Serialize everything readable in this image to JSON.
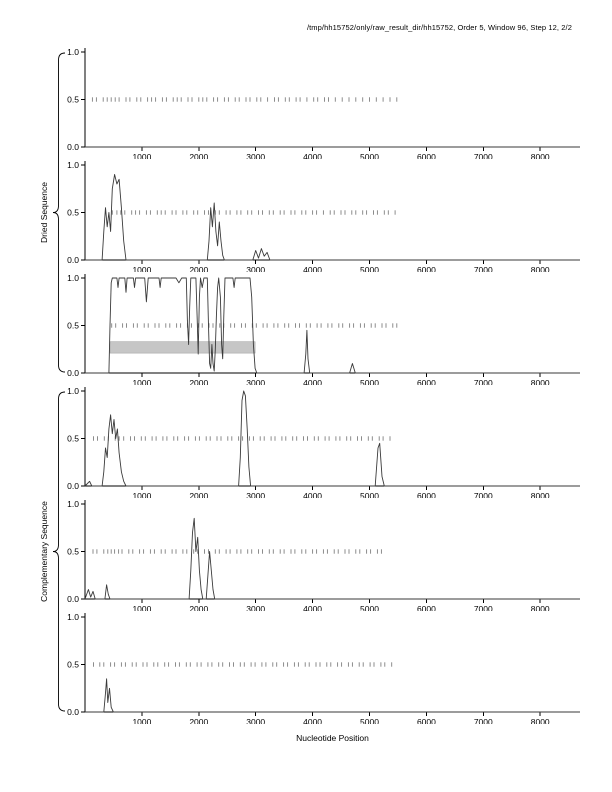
{
  "page": {
    "title": "/tmp/hh15752/only/raw_result_dir/hh15752, Order 5, Window 96, Step 12, 2/2",
    "xlabel": "Nucleotide Position",
    "group_labels": [
      "Dried Sequence",
      "Complementary Sequence"
    ]
  },
  "chart_data": {
    "type": "line",
    "layout": "6 stacked subplots, shared x axis, rug marks at y=0.5",
    "title": "/tmp/hh15752/only/raw_result_dir/hh15752, Order 5, Window 96, Step 12, 2/2",
    "xlabel": "Nucleotide Position",
    "xlim": [
      0,
      8700
    ],
    "ylim": [
      0,
      1
    ],
    "x_ticks": [
      1000,
      2000,
      3000,
      4000,
      5000,
      6000,
      7000,
      8000
    ],
    "y_ticks": [
      0,
      0.5,
      1
    ],
    "line_color": "#3a3a3a",
    "rug_color": "#808080",
    "axis_color": "#000000",
    "subplots": [
      {
        "name": "dried-1",
        "group": "Dried Sequence",
        "line": [
          [
            0,
            0
          ],
          [
            8700,
            0
          ]
        ],
        "rug_y": 0.5,
        "rug_x": [
          130,
          200,
          320,
          390,
          460,
          530,
          600,
          720,
          790,
          910,
          980,
          1100,
          1170,
          1240,
          1360,
          1430,
          1550,
          1620,
          1690,
          1810,
          1880,
          2000,
          2070,
          2140,
          2260,
          2330,
          2450,
          2520,
          2640,
          2710,
          2830,
          2900,
          3020,
          3090,
          3210,
          3330,
          3400,
          3520,
          3590,
          3710,
          3780,
          3900,
          4020,
          4090,
          4210,
          4280,
          4400,
          4520,
          4640,
          4760,
          4880,
          5000,
          5120,
          5240,
          5360,
          5480
        ]
      },
      {
        "name": "dried-2",
        "group": "Dried Sequence",
        "line": [
          [
            0,
            0
          ],
          [
            300,
            0
          ],
          [
            330,
            0.3
          ],
          [
            360,
            0.55
          ],
          [
            390,
            0.35
          ],
          [
            420,
            0.5
          ],
          [
            450,
            0.3
          ],
          [
            480,
            0.75
          ],
          [
            520,
            0.9
          ],
          [
            560,
            0.8
          ],
          [
            600,
            0.85
          ],
          [
            640,
            0.55
          ],
          [
            680,
            0.2
          ],
          [
            720,
            0
          ],
          [
            2150,
            0
          ],
          [
            2180,
            0.2
          ],
          [
            2210,
            0.55
          ],
          [
            2240,
            0.35
          ],
          [
            2270,
            0.6
          ],
          [
            2300,
            0.3
          ],
          [
            2330,
            0.15
          ],
          [
            2360,
            0.4
          ],
          [
            2390,
            0.2
          ],
          [
            2420,
            0.05
          ],
          [
            2450,
            0
          ],
          [
            2950,
            0
          ],
          [
            3000,
            0.1
          ],
          [
            3050,
            0.02
          ],
          [
            3100,
            0.12
          ],
          [
            3150,
            0.04
          ],
          [
            3200,
            0.08
          ],
          [
            3250,
            0
          ],
          [
            8700,
            0
          ]
        ],
        "rug_y": 0.5,
        "rug_x": [
          480,
          560,
          630,
          700,
          820,
          890,
          960,
          1080,
          1150,
          1270,
          1340,
          1410,
          1530,
          1600,
          1720,
          1790,
          1910,
          1980,
          2100,
          2170,
          2290,
          2360,
          2480,
          2550,
          2670,
          2740,
          2860,
          2930,
          3050,
          3120,
          3240,
          3310,
          3430,
          3500,
          3620,
          3690,
          3810,
          3880,
          4000,
          4070,
          4190,
          4310,
          4380,
          4500,
          4570,
          4690,
          4760,
          4880,
          4950,
          5070,
          5140,
          5260,
          5330,
          5450
        ]
      },
      {
        "name": "dried-3",
        "group": "Dried Sequence",
        "band": {
          "x0": 440,
          "x1": 2990,
          "y0": 0.21,
          "y1": 0.33,
          "color": "#c6c6c6"
        },
        "line": [
          [
            0,
            0
          ],
          [
            420,
            0
          ],
          [
            440,
            0.5
          ],
          [
            460,
            0.95
          ],
          [
            480,
            1
          ],
          [
            560,
            1
          ],
          [
            580,
            0.9
          ],
          [
            600,
            1
          ],
          [
            700,
            1
          ],
          [
            720,
            0.85
          ],
          [
            740,
            1
          ],
          [
            850,
            1
          ],
          [
            870,
            0.9
          ],
          [
            890,
            1
          ],
          [
            1050,
            1
          ],
          [
            1080,
            0.75
          ],
          [
            1110,
            1
          ],
          [
            1300,
            1
          ],
          [
            1320,
            0.9
          ],
          [
            1340,
            1
          ],
          [
            1600,
            1
          ],
          [
            1650,
            0.95
          ],
          [
            1700,
            1
          ],
          [
            1780,
            1
          ],
          [
            1800,
            0.55
          ],
          [
            1820,
            0.3
          ],
          [
            1840,
            0.7
          ],
          [
            1860,
            1
          ],
          [
            1950,
            1
          ],
          [
            1970,
            0.6
          ],
          [
            1990,
            0.2
          ],
          [
            2010,
            0.8
          ],
          [
            2030,
            1
          ],
          [
            2060,
            0.9
          ],
          [
            2090,
            1
          ],
          [
            2150,
            1
          ],
          [
            2170,
            0.5
          ],
          [
            2190,
            0.1
          ],
          [
            2210,
            0.05
          ],
          [
            2230,
            0.3
          ],
          [
            2250,
            0.1
          ],
          [
            2270,
            0.02
          ],
          [
            2290,
            0.25
          ],
          [
            2310,
            0.6
          ],
          [
            2330,
            0.9
          ],
          [
            2350,
            1
          ],
          [
            2380,
            0.8
          ],
          [
            2400,
            0.3
          ],
          [
            2420,
            0.15
          ],
          [
            2440,
            0.6
          ],
          [
            2460,
            1
          ],
          [
            2600,
            1
          ],
          [
            2620,
            0.9
          ],
          [
            2640,
            1
          ],
          [
            2750,
            1
          ],
          [
            2900,
            1
          ],
          [
            2930,
            0.8
          ],
          [
            2960,
            0.3
          ],
          [
            2990,
            0.05
          ],
          [
            3020,
            0
          ],
          [
            3850,
            0
          ],
          [
            3880,
            0.2
          ],
          [
            3900,
            0.45
          ],
          [
            3920,
            0.15
          ],
          [
            3950,
            0
          ],
          [
            4650,
            0
          ],
          [
            4700,
            0.1
          ],
          [
            4750,
            0
          ],
          [
            8700,
            0
          ]
        ],
        "rug_y": 0.5,
        "rug_x": [
          470,
          540,
          660,
          730,
          850,
          920,
          1040,
          1110,
          1230,
          1300,
          1420,
          1490,
          1610,
          1680,
          1800,
          1870,
          1990,
          2060,
          2180,
          2250,
          2370,
          2440,
          2560,
          2630,
          2750,
          2820,
          2940,
          3010,
          3130,
          3200,
          3320,
          3390,
          3510,
          3580,
          3700,
          3770,
          3890,
          3960,
          4080,
          4150,
          4270,
          4340,
          4460,
          4530,
          4650,
          4720,
          4840,
          4910,
          5030,
          5100,
          5220,
          5290,
          5410,
          5480
        ]
      },
      {
        "name": "complementary-1",
        "group": "Complementary Sequence",
        "line": [
          [
            0,
            0
          ],
          [
            80,
            0.05
          ],
          [
            120,
            0
          ],
          [
            300,
            0
          ],
          [
            330,
            0.15
          ],
          [
            360,
            0.4
          ],
          [
            390,
            0.3
          ],
          [
            420,
            0.6
          ],
          [
            450,
            0.75
          ],
          [
            480,
            0.55
          ],
          [
            510,
            0.7
          ],
          [
            540,
            0.5
          ],
          [
            570,
            0.6
          ],
          [
            600,
            0.35
          ],
          [
            640,
            0.15
          ],
          [
            680,
            0.05
          ],
          [
            720,
            0
          ],
          [
            2700,
            0
          ],
          [
            2730,
            0.3
          ],
          [
            2760,
            0.9
          ],
          [
            2790,
            1
          ],
          [
            2820,
            0.95
          ],
          [
            2850,
            0.6
          ],
          [
            2880,
            0.2
          ],
          [
            2910,
            0
          ],
          [
            5100,
            0
          ],
          [
            5150,
            0.4
          ],
          [
            5180,
            0.45
          ],
          [
            5220,
            0.1
          ],
          [
            5260,
            0
          ],
          [
            8700,
            0
          ]
        ],
        "rug_y": 0.5,
        "rug_x": [
          150,
          220,
          340,
          410,
          530,
          600,
          680,
          800,
          870,
          990,
          1060,
          1180,
          1250,
          1370,
          1440,
          1560,
          1630,
          1750,
          1820,
          1940,
          2010,
          2130,
          2200,
          2320,
          2390,
          2510,
          2580,
          2700,
          2770,
          2890,
          2960,
          3080,
          3150,
          3270,
          3340,
          3460,
          3530,
          3650,
          3720,
          3840,
          3910,
          4030,
          4100,
          4220,
          4290,
          4410,
          4480,
          4600,
          4670,
          4790,
          4860,
          4980,
          5050,
          5170,
          5240,
          5360
        ]
      },
      {
        "name": "complementary-2",
        "group": "Complementary Sequence",
        "line": [
          [
            0,
            0
          ],
          [
            60,
            0.1
          ],
          [
            100,
            0.02
          ],
          [
            140,
            0.08
          ],
          [
            180,
            0
          ],
          [
            350,
            0
          ],
          [
            380,
            0.15
          ],
          [
            410,
            0.05
          ],
          [
            440,
            0
          ],
          [
            1830,
            0
          ],
          [
            1860,
            0.3
          ],
          [
            1890,
            0.7
          ],
          [
            1920,
            0.85
          ],
          [
            1950,
            0.5
          ],
          [
            1980,
            0.65
          ],
          [
            2010,
            0.3
          ],
          [
            2040,
            0.1
          ],
          [
            2070,
            0
          ],
          [
            2130,
            0
          ],
          [
            2160,
            0.25
          ],
          [
            2190,
            0.5
          ],
          [
            2220,
            0.3
          ],
          [
            2250,
            0.1
          ],
          [
            2280,
            0
          ],
          [
            8700,
            0
          ]
        ],
        "rug_y": 0.5,
        "rug_x": [
          140,
          210,
          330,
          400,
          460,
          520,
          590,
          650,
          770,
          840,
          960,
          1030,
          1150,
          1220,
          1340,
          1410,
          1530,
          1600,
          1720,
          1790,
          1910,
          1980,
          2100,
          2170,
          2290,
          2360,
          2480,
          2550,
          2670,
          2740,
          2860,
          2930,
          3050,
          3120,
          3240,
          3310,
          3430,
          3500,
          3620,
          3690,
          3810,
          3880,
          4000,
          4070,
          4190,
          4260,
          4380,
          4450,
          4570,
          4640,
          4760,
          4830,
          4950,
          5020,
          5140,
          5210
        ]
      },
      {
        "name": "complementary-3",
        "group": "Complementary Sequence",
        "line": [
          [
            0,
            0
          ],
          [
            330,
            0
          ],
          [
            360,
            0.2
          ],
          [
            380,
            0.35
          ],
          [
            400,
            0.1
          ],
          [
            430,
            0.25
          ],
          [
            460,
            0.05
          ],
          [
            500,
            0
          ],
          [
            8700,
            0
          ]
        ],
        "rug_y": 0.5,
        "rug_x": [
          150,
          260,
          330,
          450,
          520,
          640,
          710,
          830,
          900,
          1020,
          1090,
          1210,
          1280,
          1400,
          1470,
          1590,
          1660,
          1780,
          1850,
          1970,
          2040,
          2160,
          2230,
          2350,
          2420,
          2540,
          2610,
          2730,
          2800,
          2920,
          2990,
          3110,
          3180,
          3300,
          3370,
          3490,
          3560,
          3680,
          3750,
          3870,
          3940,
          4060,
          4130,
          4250,
          4320,
          4440,
          4510,
          4630,
          4700,
          4820,
          4890,
          5010,
          5080,
          5200,
          5270,
          5390
        ]
      }
    ]
  }
}
